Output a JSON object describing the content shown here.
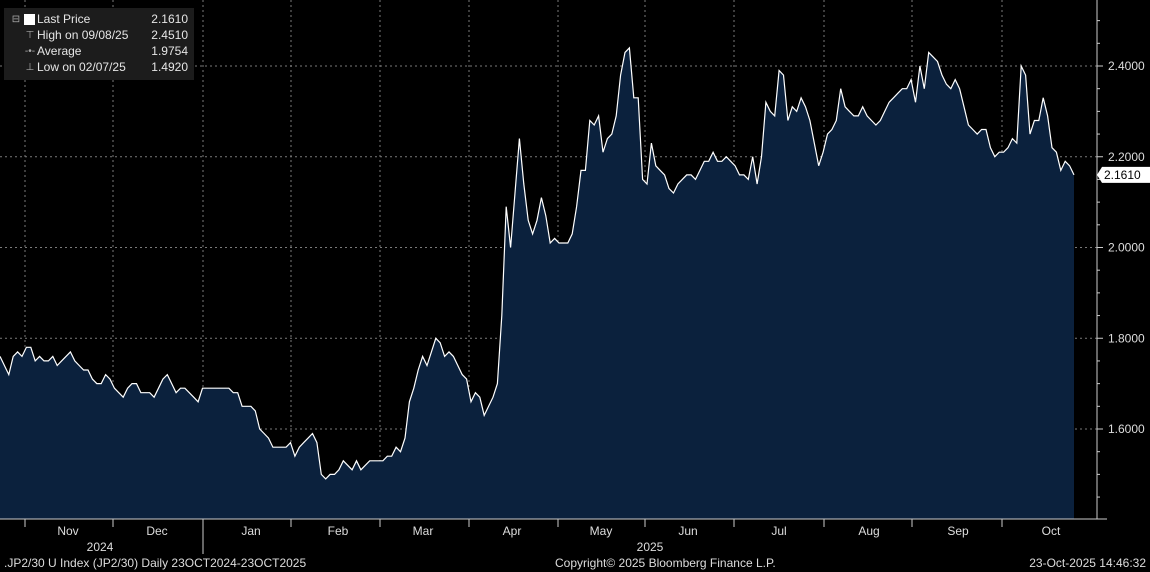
{
  "legend": {
    "last_label": "Last Price",
    "last_value": "2.1610",
    "high_label": "High on 09/08/25",
    "high_value": "2.4510",
    "avg_label": "Average",
    "avg_value": "1.9754",
    "low_label": "Low on 02/07/25",
    "low_value": "1.4920"
  },
  "footer": {
    "left": ".JP2/30 U Index (JP2/30) Daily 23OCT2024-23OCT2025",
    "center": "Copyright© 2025 Bloomberg Finance L.P.",
    "right": "23-Oct-2025 14:46:32"
  },
  "colors": {
    "background": "#000000",
    "area_fill": "#0b213d",
    "line": "#ffffff",
    "grid": "#7a7a7a"
  },
  "chart_data": {
    "type": "area",
    "title": "",
    "xlabel": "",
    "ylabel": "",
    "ylim": [
      1.4,
      2.55
    ],
    "yticks": [
      "1.6000",
      "1.8000",
      "2.0000",
      "2.2000",
      "2.4000"
    ],
    "ytick_values": [
      1.6,
      1.8,
      2.0,
      2.2,
      2.4
    ],
    "months": [
      "Nov",
      "Dec",
      "Jan",
      "Feb",
      "Mar",
      "Apr",
      "May",
      "Jun",
      "Jul",
      "Aug",
      "Sep",
      "Oct"
    ],
    "years": [
      "2024",
      "2025"
    ],
    "last_price_label": "2.1610",
    "grid": true,
    "series": [
      {
        "values": [
          1.76,
          1.74,
          1.72,
          1.76,
          1.77,
          1.76,
          1.78,
          1.78,
          1.75,
          1.76,
          1.75,
          1.75,
          1.76,
          1.74,
          1.75,
          1.76,
          1.77,
          1.75,
          1.74,
          1.73,
          1.73,
          1.71,
          1.7,
          1.7,
          1.72,
          1.71,
          1.69,
          1.68,
          1.67,
          1.69,
          1.7,
          1.7,
          1.68,
          1.68,
          1.68,
          1.67,
          1.69,
          1.71,
          1.72,
          1.7,
          1.68,
          1.69,
          1.69,
          1.68,
          1.67,
          1.66,
          1.69,
          1.69,
          1.69,
          1.69,
          1.69,
          1.69,
          1.69,
          1.68,
          1.68,
          1.65,
          1.65,
          1.65,
          1.64,
          1.6,
          1.59,
          1.58,
          1.56,
          1.56,
          1.56,
          1.56,
          1.57,
          1.54,
          1.56,
          1.57,
          1.58,
          1.59,
          1.57,
          1.5,
          1.49,
          1.5,
          1.5,
          1.51,
          1.53,
          1.52,
          1.51,
          1.53,
          1.51,
          1.52,
          1.53,
          1.53,
          1.53,
          1.53,
          1.54,
          1.54,
          1.56,
          1.55,
          1.58,
          1.66,
          1.69,
          1.73,
          1.76,
          1.74,
          1.77,
          1.8,
          1.79,
          1.76,
          1.77,
          1.76,
          1.74,
          1.72,
          1.71,
          1.66,
          1.68,
          1.67,
          1.63,
          1.65,
          1.67,
          1.7,
          1.85,
          2.09,
          2.0,
          2.12,
          2.24,
          2.14,
          2.06,
          2.03,
          2.06,
          2.11,
          2.07,
          2.01,
          2.02,
          2.01,
          2.01,
          2.01,
          2.03,
          2.09,
          2.17,
          2.17,
          2.28,
          2.27,
          2.29,
          2.21,
          2.24,
          2.25,
          2.29,
          2.38,
          2.43,
          2.44,
          2.33,
          2.33,
          2.15,
          2.14,
          2.23,
          2.18,
          2.17,
          2.16,
          2.13,
          2.12,
          2.14,
          2.15,
          2.16,
          2.16,
          2.15,
          2.17,
          2.19,
          2.19,
          2.21,
          2.19,
          2.19,
          2.2,
          2.19,
          2.18,
          2.16,
          2.16,
          2.15,
          2.2,
          2.14,
          2.2,
          2.32,
          2.3,
          2.29,
          2.39,
          2.38,
          2.28,
          2.31,
          2.3,
          2.33,
          2.31,
          2.28,
          2.23,
          2.18,
          2.21,
          2.25,
          2.26,
          2.28,
          2.35,
          2.31,
          2.3,
          2.29,
          2.29,
          2.31,
          2.29,
          2.28,
          2.27,
          2.28,
          2.3,
          2.32,
          2.33,
          2.34,
          2.35,
          2.35,
          2.37,
          2.32,
          2.4,
          2.35,
          2.43,
          2.42,
          2.41,
          2.38,
          2.36,
          2.35,
          2.37,
          2.35,
          2.31,
          2.27,
          2.26,
          2.25,
          2.26,
          2.26,
          2.22,
          2.2,
          2.21,
          2.21,
          2.22,
          2.24,
          2.23,
          2.4,
          2.38,
          2.25,
          2.28,
          2.28,
          2.33,
          2.29,
          2.22,
          2.21,
          2.17,
          2.19,
          2.18,
          2.16
        ]
      }
    ]
  }
}
